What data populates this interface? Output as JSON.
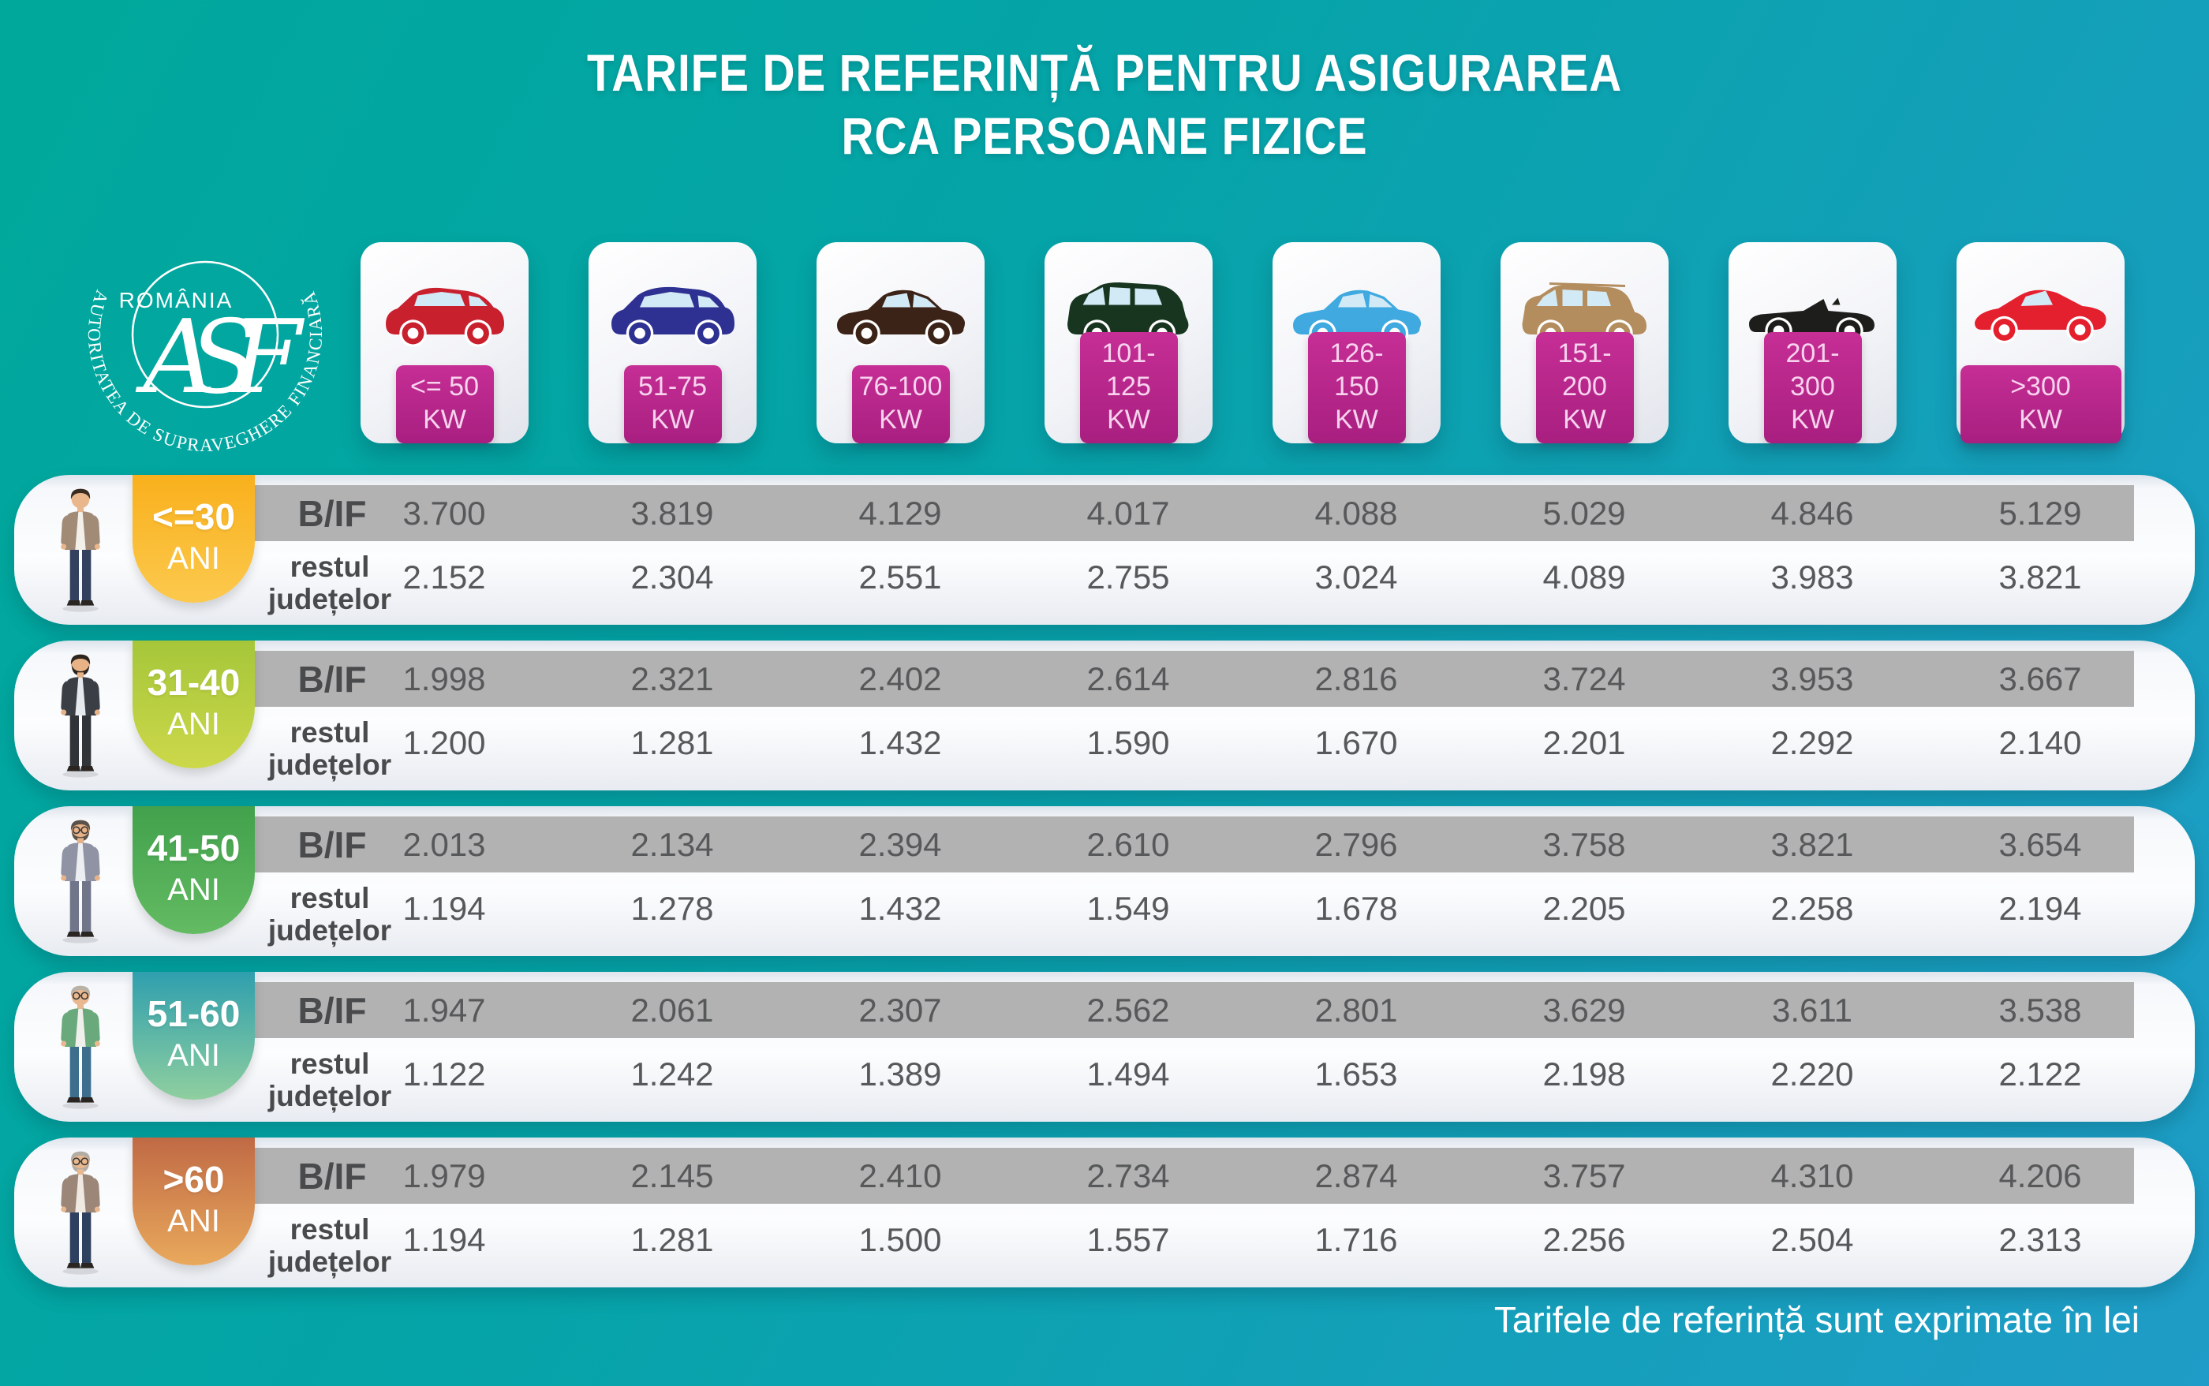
{
  "title": {
    "line1": "TARIFE DE REFERINȚĂ PENTRU ASIGURAREA",
    "line2": "RCA PERSOANE FIZICE"
  },
  "logo": {
    "country": "ROMÂNIA",
    "monogram": "ASF",
    "ring_text": "AUTORITATEA DE SUPRAVEGHERE FINANCIARĂ"
  },
  "labels": {
    "bif": "B/IF",
    "rest_line1": "restul",
    "rest_line2": "județelor",
    "kw": "KW",
    "ani": "ANI"
  },
  "footer": {
    "note": "Tarifele de referință sunt exprimate în lei"
  },
  "colors": {
    "background_top": "#00a89b",
    "background_bottom": "#1f9cc7",
    "card_gray_band": "#b2b2b2",
    "value_text": "#57585a",
    "label_text": "#494a4c",
    "kw_badge_top": "#c62e95",
    "kw_badge_bottom": "#a81f80",
    "kw_badge_text": "#f8d3ee"
  },
  "columns": [
    {
      "kw": "<= 50",
      "car": "hatchback",
      "car_color": "#c9202e"
    },
    {
      "kw": "51-75",
      "car": "crossover",
      "car_color": "#2e3192"
    },
    {
      "kw": "76-100",
      "car": "sedan",
      "car_color": "#3c2317"
    },
    {
      "kw": "101-125",
      "car": "minivan",
      "car_color": "#17351f"
    },
    {
      "kw": "126-150",
      "car": "sedan",
      "car_color": "#3fa9e0"
    },
    {
      "kw": "151-200",
      "car": "suv",
      "car_color": "#b48d5e"
    },
    {
      "kw": "201-300",
      "car": "convertible",
      "car_color": "#1d1d1b"
    },
    {
      "kw": ">300",
      "car": "sports",
      "car_color": "#e5202e",
      "wide": true
    }
  ],
  "rows": [
    {
      "age_top": "<=30",
      "badge": [
        "#f9b01c",
        "#fcc94e"
      ],
      "person": {
        "hair": "#3a2b21",
        "skin": "#eab68c",
        "jacket": "#a18a76",
        "shirt": "#f3f0ea",
        "pants": "#33415e",
        "glasses": false,
        "beard": false
      },
      "bif": [
        "3.700",
        "3.819",
        "4.129",
        "4.017",
        "4.088",
        "5.029",
        "4.846",
        "5.129"
      ],
      "rest": [
        "2.152",
        "2.304",
        "2.551",
        "2.755",
        "3.024",
        "4.089",
        "3.983",
        "3.821"
      ]
    },
    {
      "age_top": "31-40",
      "badge": [
        "#a6c63a",
        "#ccd84a"
      ],
      "person": {
        "hair": "#2c241d",
        "skin": "#e8b287",
        "jacket": "#3b3e45",
        "shirt": "#e6e9ee",
        "pants": "#303338",
        "glasses": false,
        "beard": true
      },
      "bif": [
        "1.998",
        "2.321",
        "2.402",
        "2.614",
        "2.816",
        "3.724",
        "3.953",
        "3.667"
      ],
      "rest": [
        "1.200",
        "1.281",
        "1.432",
        "1.590",
        "1.670",
        "2.201",
        "2.292",
        "2.140"
      ]
    },
    {
      "age_top": "41-50",
      "badge": [
        "#42a14c",
        "#63bb62"
      ],
      "person": {
        "hair": "#5a5148",
        "skin": "#e8b287",
        "jacket": "#8f93a3",
        "shirt": "#eceef2",
        "pants": "#70758a",
        "glasses": true,
        "beard": true
      },
      "bif": [
        "2.013",
        "2.134",
        "2.394",
        "2.610",
        "2.796",
        "3.758",
        "3.821",
        "3.654"
      ],
      "rest": [
        "1.194",
        "1.278",
        "1.432",
        "1.549",
        "1.678",
        "2.205",
        "2.258",
        "2.194"
      ]
    },
    {
      "age_top": "51-60",
      "badge": [
        "#2f9fae",
        "#8fcf9f"
      ],
      "person": {
        "hair": "#b8b2a7",
        "skin": "#e9b88f",
        "jacket": "#6aa97b",
        "shirt": "#efefec",
        "pants": "#3e6e8e",
        "glasses": true,
        "beard": false
      },
      "bif": [
        "1.947",
        "2.061",
        "2.307",
        "2.562",
        "2.801",
        "3.629",
        "3.611",
        "3.538"
      ],
      "rest": [
        "1.122",
        "1.242",
        "1.389",
        "1.494",
        "1.653",
        "2.198",
        "2.220",
        "2.122"
      ]
    },
    {
      "age_top": ">60",
      "badge": [
        "#c06a45",
        "#e9a95c"
      ],
      "person": {
        "hair": "#b3aca3",
        "skin": "#e9b88f",
        "jacket": "#9b8678",
        "shirt": "#efe9e1",
        "pants": "#2e405f",
        "glasses": true,
        "beard": true
      },
      "bif": [
        "1.979",
        "2.145",
        "2.410",
        "2.734",
        "2.874",
        "3.757",
        "4.310",
        "4.206"
      ],
      "rest": [
        "1.194",
        "1.281",
        "1.500",
        "1.557",
        "1.716",
        "2.256",
        "2.504",
        "2.313"
      ]
    }
  ],
  "chart_data": {
    "type": "table",
    "title": "TARIFE DE REFERINȚĂ PENTRU ASIGURAREA RCA PERSOANE FIZICE",
    "unit": "lei",
    "unit_note": "Tarifele de referință sunt exprimate în lei",
    "columns_kw": [
      "<= 50 KW",
      "51-75 KW",
      "76-100 KW",
      "101-125 KW",
      "126-150 KW",
      "151-200 KW",
      "201-300 KW",
      ">300 KW"
    ],
    "row_subcategories": [
      "B/IF",
      "restul județelor"
    ],
    "series": [
      {
        "age": "<=30 ANI",
        "bif": [
          3700,
          3819,
          4129,
          4017,
          4088,
          5029,
          4846,
          5129
        ],
        "restul_judetelor": [
          2152,
          2304,
          2551,
          2755,
          3024,
          4089,
          3983,
          3821
        ]
      },
      {
        "age": "31-40 ANI",
        "bif": [
          1998,
          2321,
          2402,
          2614,
          2816,
          3724,
          3953,
          3667
        ],
        "restul_judetelor": [
          1200,
          1281,
          1432,
          1590,
          1670,
          2201,
          2292,
          2140
        ]
      },
      {
        "age": "41-50 ANI",
        "bif": [
          2013,
          2134,
          2394,
          2610,
          2796,
          3758,
          3821,
          3654
        ],
        "restul_judetelor": [
          1194,
          1278,
          1432,
          1549,
          1678,
          2205,
          2258,
          2194
        ]
      },
      {
        "age": "51-60 ANI",
        "bif": [
          1947,
          2061,
          2307,
          2562,
          2801,
          3629,
          3611,
          3538
        ],
        "restul_judetelor": [
          1122,
          1242,
          1389,
          1494,
          1653,
          2198,
          2220,
          2122
        ]
      },
      {
        "age": ">60 ANI",
        "bif": [
          1979,
          2145,
          2410,
          2734,
          2874,
          3757,
          4310,
          4206
        ],
        "restul_judetelor": [
          1194,
          1281,
          1500,
          1557,
          1716,
          2256,
          2504,
          2313
        ]
      }
    ]
  }
}
